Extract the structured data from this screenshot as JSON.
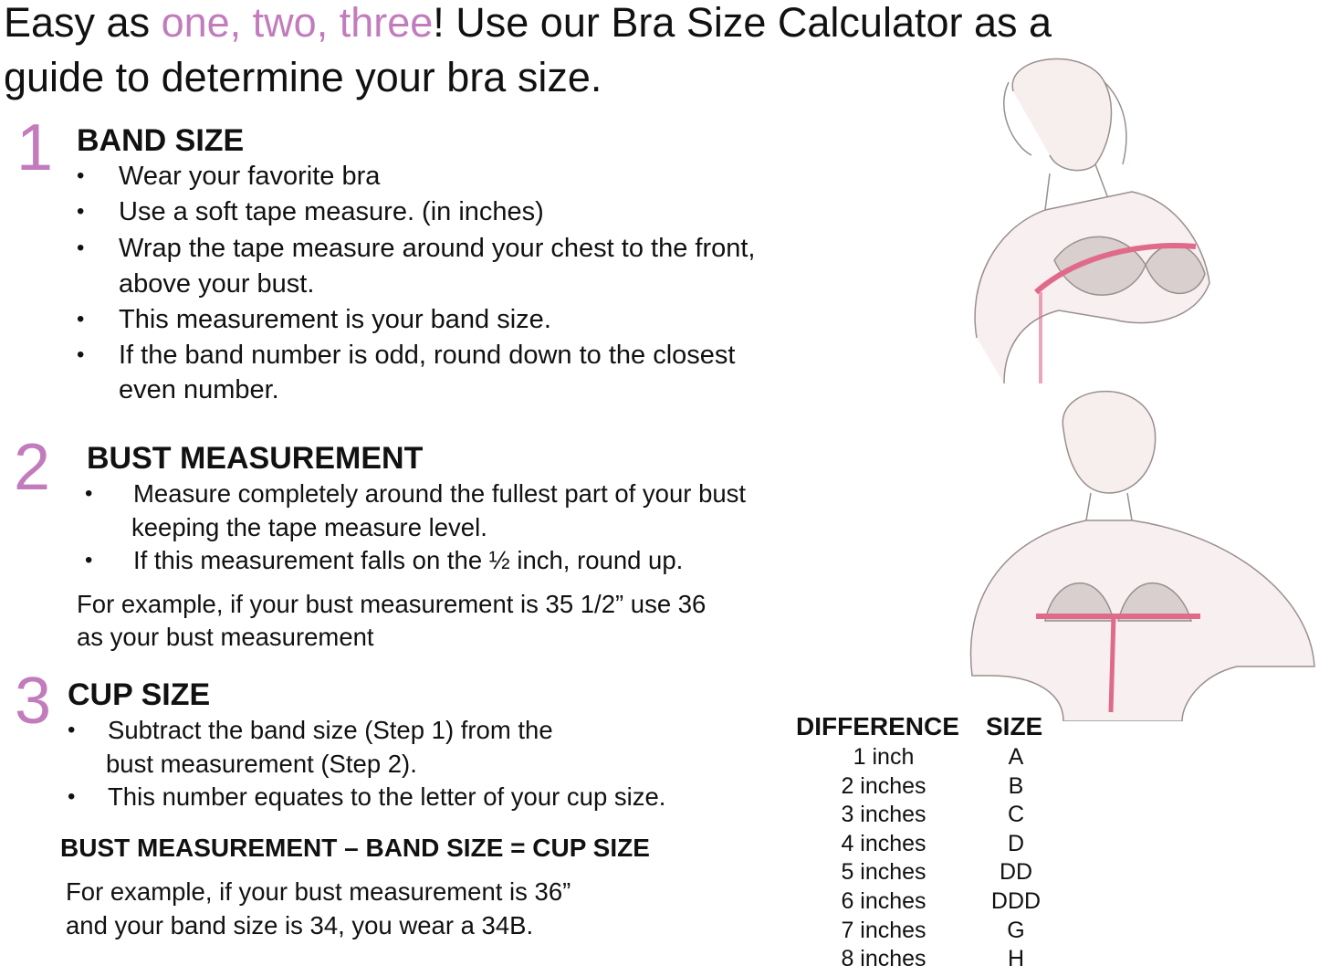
{
  "title": {
    "prefix": "Easy as ",
    "highlight": "one, two, three",
    "suffix_line1": "! Use our Bra Size Calculator as a",
    "line2": "guide to determine your bra size.",
    "highlight_color": "#c27cbd"
  },
  "step1": {
    "number": "1",
    "heading": "BAND SIZE",
    "bullets": [
      "Wear your favorite bra",
      "Use a soft tape measure. (in inches)",
      "Wrap the tape measure around your chest to the front,",
      "above your bust.",
      "This measurement is your band size.",
      "If the band number is odd, round down to the closest",
      "even number."
    ]
  },
  "step2": {
    "number": "2",
    "heading": "BUST MEASUREMENT",
    "bullets": [
      "Measure completely around the fullest part of your bust",
      "keeping the tape measure level.",
      "If this measurement falls on the ½ inch, round up."
    ],
    "example": [
      "For example, if your bust measurement is 35 1/2” use 36",
      "as your bust measurement"
    ]
  },
  "step3": {
    "number": "3",
    "heading": "CUP SIZE",
    "bullets": [
      "Subtract the band size (Step 1) from the",
      "bust measurement (Step 2).",
      "This number equates to the letter of your cup size."
    ],
    "formula": "BUST MEASUREMENT – BAND SIZE = CUP SIZE",
    "example": [
      "For example, if your bust measurement is 36”",
      "and your band size is 34, you wear a 34B."
    ]
  },
  "bullet_char": "•",
  "table": {
    "headers": [
      "DIFFERENCE",
      "SIZE"
    ],
    "rows": [
      [
        "1 inch",
        "A"
      ],
      [
        "2 inches",
        "B"
      ],
      [
        "3 inches",
        "C"
      ],
      [
        "4 inches",
        "D"
      ],
      [
        "5 inches",
        "DD"
      ],
      [
        "6 inches",
        "DDD"
      ],
      [
        "7 inches",
        "G"
      ],
      [
        "8 inches",
        "H"
      ]
    ]
  },
  "illustrations": [
    "woman-measuring-band-illustration",
    "woman-measuring-bust-illustration"
  ]
}
